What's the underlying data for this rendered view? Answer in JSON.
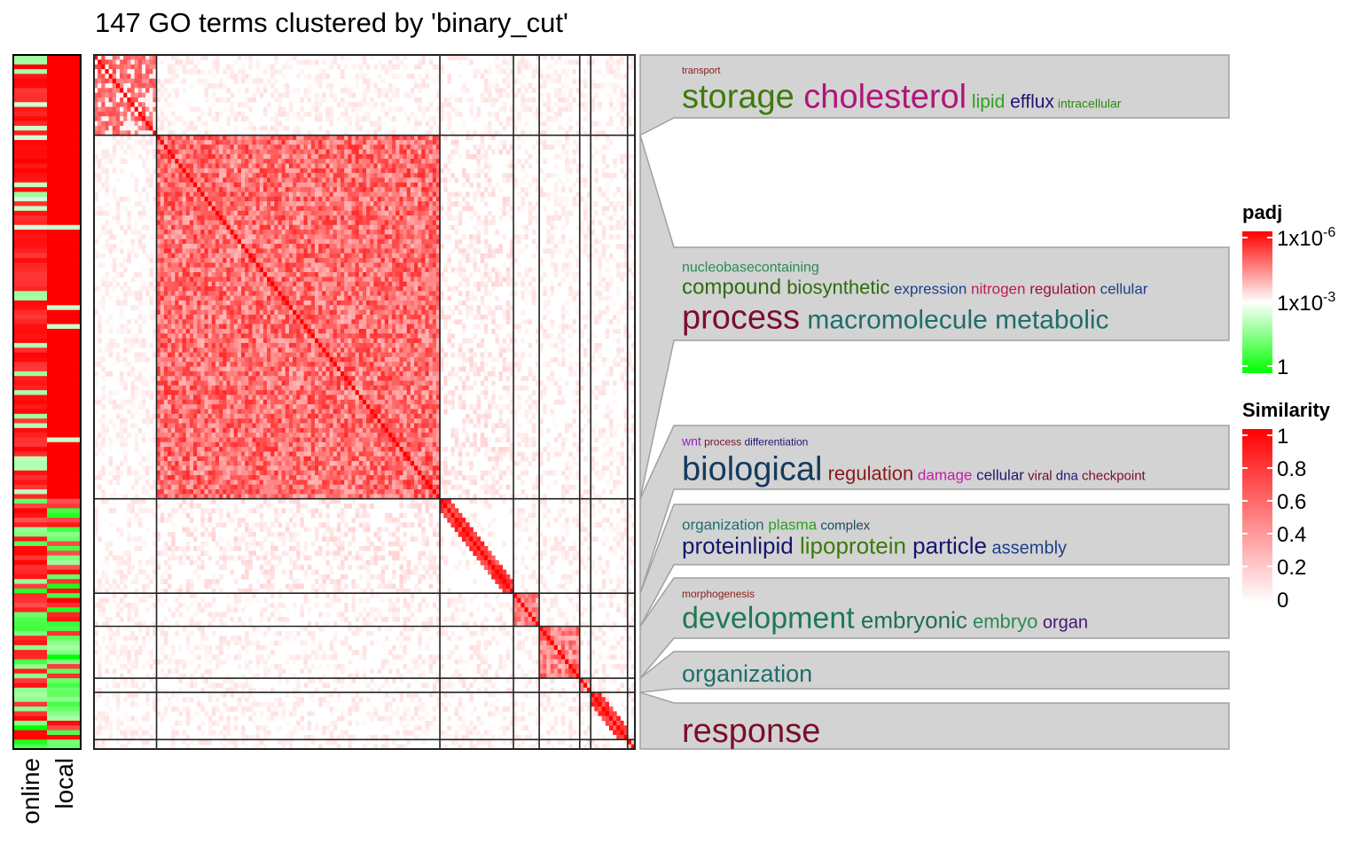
{
  "title": "147 GO terms clustered by 'binary_cut'",
  "chart_data": {
    "type": "heatmap",
    "title": "147 GO terms clustered by 'binary_cut'",
    "n_terms": 147,
    "cluster_sizes": [
      17,
      77,
      20,
      7,
      11,
      3,
      10,
      2
    ],
    "annotation_columns": [
      "online",
      "local"
    ],
    "clusters": [
      {
        "lines": [
          [
            {
              "w": "transport",
              "c": "#8b1a1a",
              "s": 11
            }
          ],
          [
            {
              "w": "storage",
              "c": "#3f7a0b",
              "s": 38
            },
            {
              "w": "cholesterol",
              "c": "#b0157a",
              "s": 38
            },
            {
              "w": "lipid",
              "c": "#2fa025",
              "s": 21
            },
            {
              "w": "efflux",
              "c": "#1e1575",
              "s": 21
            },
            {
              "w": "intracellular",
              "c": "#2a8a14",
              "s": 14
            }
          ]
        ]
      },
      {
        "lines": [
          [
            {
              "w": "nucleobasecontaining",
              "c": "#2b8a52",
              "s": 16
            }
          ],
          [
            {
              "w": "compound",
              "c": "#2e6b0e",
              "s": 24
            },
            {
              "w": "biosynthetic",
              "c": "#2e6b0e",
              "s": 22
            },
            {
              "w": "expression",
              "c": "#1f3e8a",
              "s": 17
            },
            {
              "w": "nitrogen",
              "c": "#c2185b",
              "s": 17
            },
            {
              "w": "regulation",
              "c": "#9a1035",
              "s": 17
            },
            {
              "w": "cellular",
              "c": "#1f3e8a",
              "s": 17
            }
          ],
          [
            {
              "w": "process",
              "c": "#7a0f2c",
              "s": 38
            },
            {
              "w": "macromolecule",
              "c": "#1e6e6a",
              "s": 30
            },
            {
              "w": "metabolic",
              "c": "#1e6e6a",
              "s": 30
            }
          ]
        ]
      },
      {
        "lines": [
          [
            {
              "w": "wnt",
              "c": "#9b1ec2",
              "s": 14
            },
            {
              "w": "process",
              "c": "#7a0f2c",
              "s": 12
            },
            {
              "w": "differentiation",
              "c": "#1e1575",
              "s": 12
            }
          ],
          [
            {
              "w": "biological",
              "c": "#153a5e",
              "s": 38
            },
            {
              "w": "regulation",
              "c": "#8b1a1a",
              "s": 22
            },
            {
              "w": "damage",
              "c": "#c21ea6",
              "s": 17
            },
            {
              "w": "cellular",
              "c": "#1e1a6e",
              "s": 17
            },
            {
              "w": "viral",
              "c": "#6a0f2c",
              "s": 15
            },
            {
              "w": "dna",
              "c": "#1e1a6e",
              "s": 15
            },
            {
              "w": "checkpoint",
              "c": "#7a0f2c",
              "s": 15
            }
          ]
        ]
      },
      {
        "lines": [
          [
            {
              "w": "organization",
              "c": "#1e6e6a",
              "s": 17
            },
            {
              "w": "plasma",
              "c": "#2fa025",
              "s": 17
            },
            {
              "w": "complex",
              "c": "#1e4a60",
              "s": 15
            }
          ],
          [
            {
              "w": "proteinlipid",
              "c": "#15156e",
              "s": 26
            },
            {
              "w": "lipoprotein",
              "c": "#3a7a0b",
              "s": 26
            },
            {
              "w": "particle",
              "c": "#15156e",
              "s": 26
            },
            {
              "w": "assembly",
              "c": "#1f3e8a",
              "s": 20
            }
          ]
        ]
      },
      {
        "lines": [
          [
            {
              "w": "morphogenesis",
              "c": "#8b1a1a",
              "s": 12
            }
          ],
          [
            {
              "w": "development",
              "c": "#1e7a55",
              "s": 34
            },
            {
              "w": "embryonic",
              "c": "#1e6e55",
              "s": 26
            },
            {
              "w": "embryo",
              "c": "#2b8a52",
              "s": 22
            },
            {
              "w": "organ",
              "c": "#4a1575",
              "s": 20
            }
          ]
        ]
      },
      {
        "lines": [
          [
            {
              "w": "organization",
              "c": "#1e6e6a",
              "s": 27
            }
          ]
        ]
      },
      {
        "lines": [
          [
            {
              "w": "response",
              "c": "#7a0f2c",
              "s": 38
            }
          ]
        ]
      }
    ],
    "legend_padj": {
      "title": "padj",
      "labels": [
        {
          "b": "1x10",
          "e": "-6"
        },
        {
          "b": "1x10",
          "e": "-3"
        },
        {
          "b": "1",
          "e": ""
        }
      ],
      "colors": [
        "#ff0000",
        "#ffffff",
        "#00ff00"
      ]
    },
    "legend_similarity": {
      "title": "Similarity",
      "labels": [
        "1",
        "0.8",
        "0.6",
        "0.4",
        "0.2",
        "0"
      ],
      "colors": [
        "#ff0000",
        "#ffffff"
      ]
    },
    "annotation_labels": [
      "online",
      "local"
    ]
  }
}
